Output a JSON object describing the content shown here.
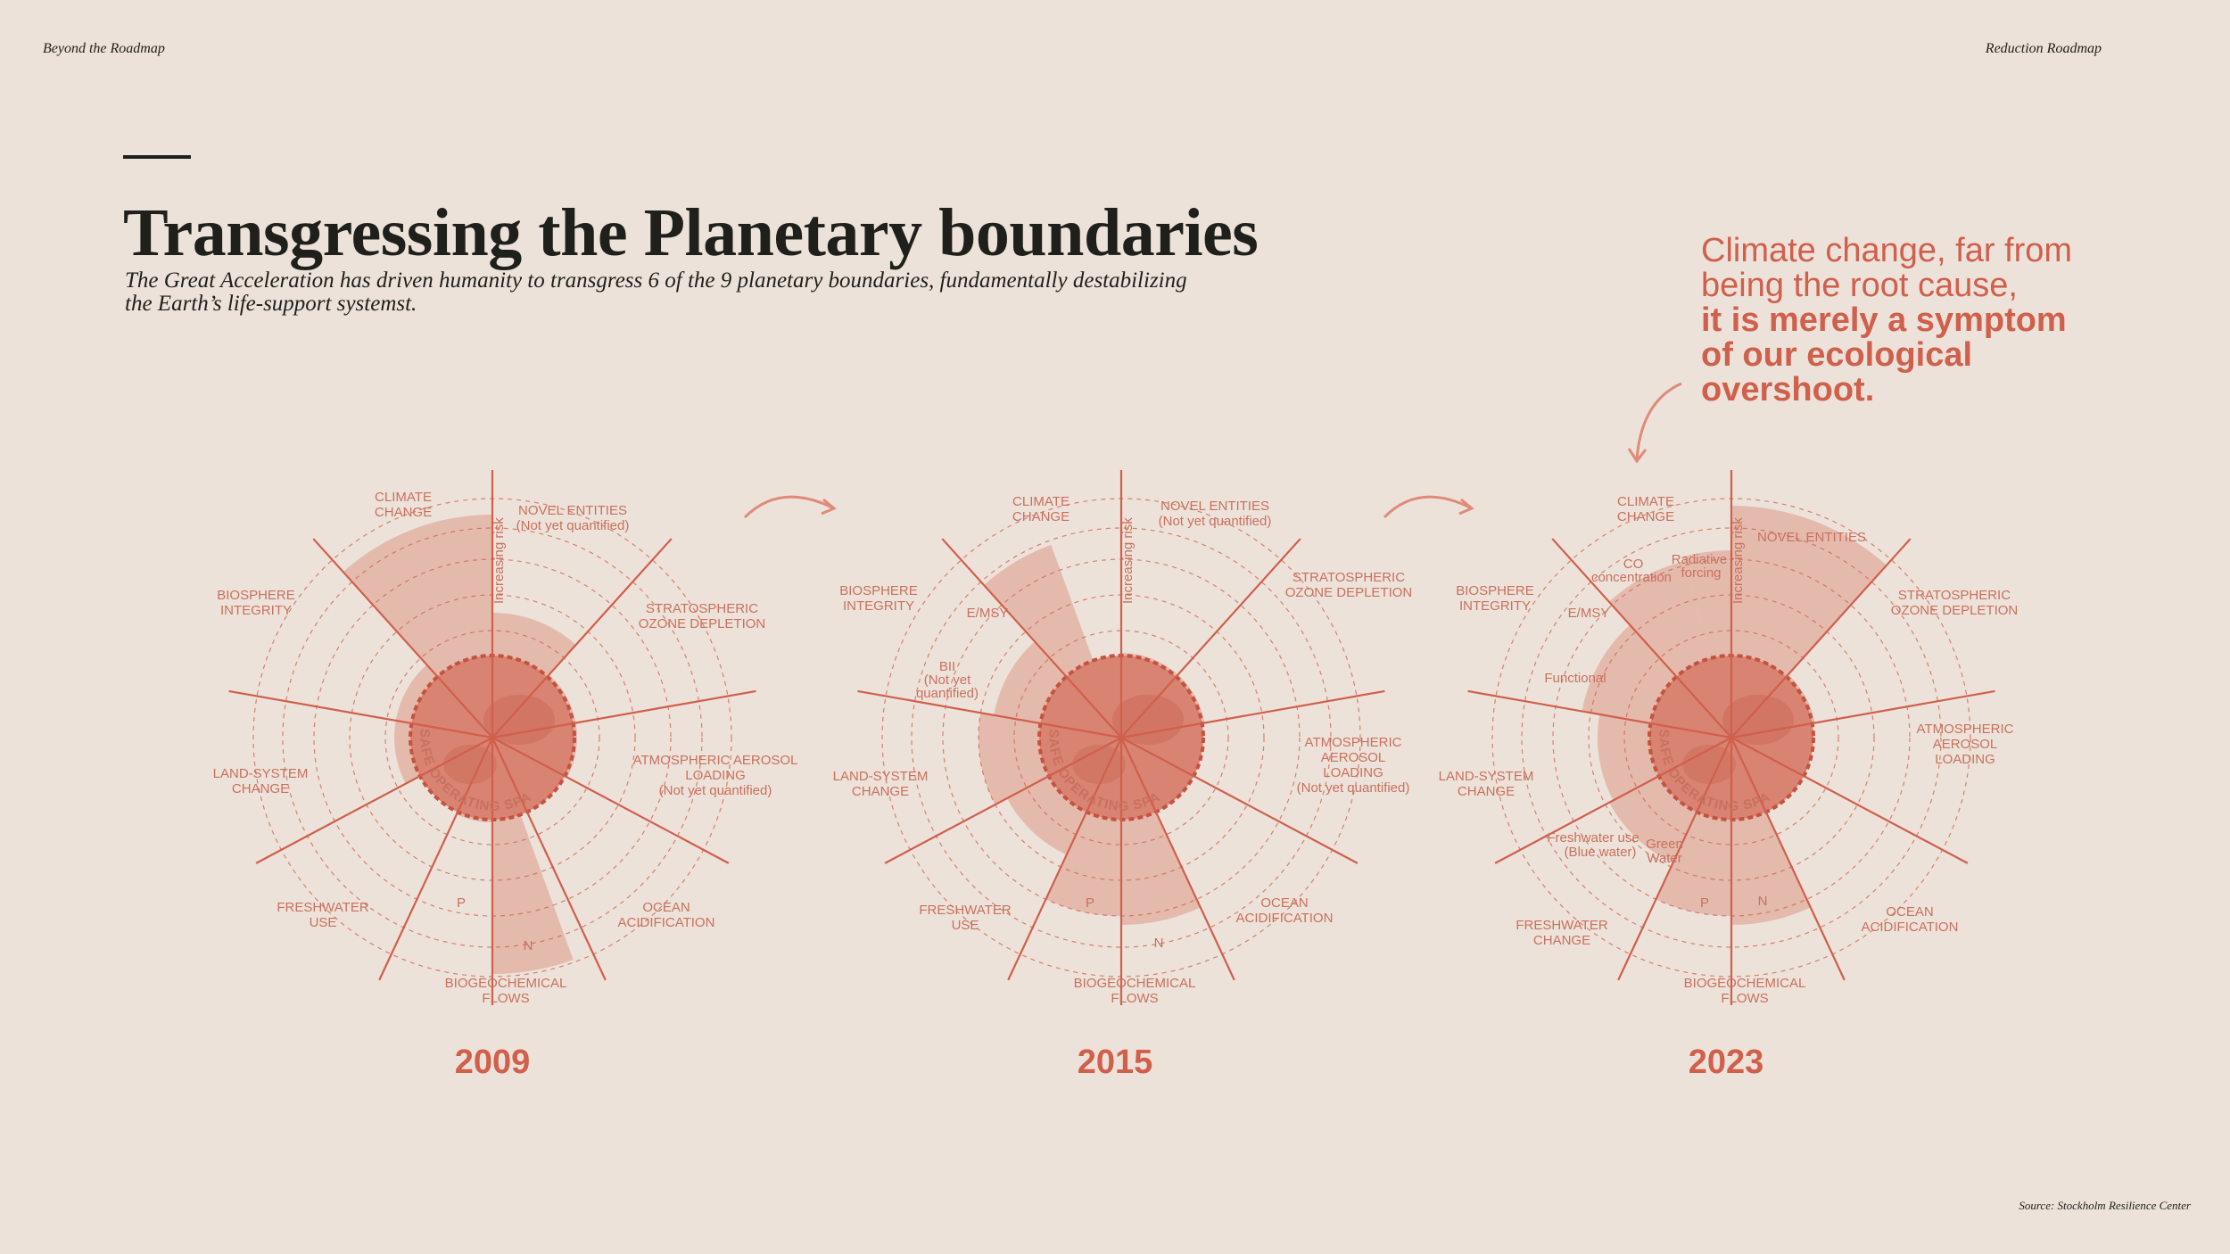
{
  "header": {
    "left": "Beyond the Roadmap",
    "right": "Reduction Roadmap"
  },
  "title": "Transgressing the Planetary boundaries",
  "subtitle": "The Great Acceleration has driven humanity to transgress 6 of the 9 planetary boundaries, fundamentally destabilizing\n the Earth’s life-support systemst.",
  "callout": {
    "line1": "Climate change, far from",
    "line2": "being the root cause,",
    "bold1": "it is merely a symptom",
    "bold2": "of our ecological",
    "bold3": "overshoot."
  },
  "source": "Source: Stockholm Resilience Center",
  "colors": {
    "accent": "#d05f4c",
    "background": "#ece2d9",
    "fill": "#e3b3a5",
    "fill_dark": "#d98372"
  },
  "axis_note": "Increasing risk",
  "safe_space": "SAFE OPERATING SPACE",
  "icons": [
    "earth-icon",
    "curved-arrow-icon"
  ],
  "diagrams": [
    {
      "year": "2009",
      "labels": [
        {
          "id": "climate",
          "text": [
            "CLIMATE",
            "CHANGE"
          ]
        },
        {
          "id": "novel",
          "text": [
            "NOVEL ENTITIES",
            "(Not yet quantified)"
          ]
        },
        {
          "id": "ozone",
          "text": [
            "STRATOSPHERIC",
            "OZONE DEPLETION"
          ]
        },
        {
          "id": "aerosol",
          "text": [
            "ATMOSPHERIC AEROSOL",
            "LOADING",
            "(Not yet quantified)"
          ]
        },
        {
          "id": "ocean",
          "text": [
            "OCEAN",
            "ACIDIFICATION"
          ]
        },
        {
          "id": "biogeo",
          "text": [
            "BIOGEOCHEMICAL",
            "FLOWS"
          ]
        },
        {
          "id": "fresh",
          "text": [
            "FRESHWATER",
            "USE"
          ]
        },
        {
          "id": "land",
          "text": [
            "LAND-SYSTEM",
            "CHANGE"
          ]
        },
        {
          "id": "bio",
          "text": [
            "BIOSPHERE",
            "INTEGRITY"
          ]
        }
      ],
      "sub": [
        "P",
        "N"
      ]
    },
    {
      "year": "2015",
      "labels": [
        {
          "id": "climate",
          "text": [
            "CLIMATE",
            "CHANGE"
          ]
        },
        {
          "id": "novel",
          "text": [
            "NOVEL ENTITIES",
            "(Not yet quantified)"
          ]
        },
        {
          "id": "ozone",
          "text": [
            "STRATOSPHERIC",
            "OZONE DEPLETION"
          ]
        },
        {
          "id": "aerosol",
          "text": [
            "ATMOSPHERIC",
            "AEROSOL",
            "LOADING",
            "(Not yet quantified)"
          ]
        },
        {
          "id": "ocean",
          "text": [
            "OCEAN",
            "ACIDIFICATION"
          ]
        },
        {
          "id": "biogeo",
          "text": [
            "BIOGEOCHEMICAL",
            "FLOWS"
          ]
        },
        {
          "id": "fresh",
          "text": [
            "FRESHWATER",
            "USE"
          ]
        },
        {
          "id": "land",
          "text": [
            "LAND-SYSTEM",
            "CHANGE"
          ]
        },
        {
          "id": "bio",
          "text": [
            "BIOSPHERE",
            "INTEGRITY"
          ]
        }
      ],
      "sub": [
        "E/MSY",
        "BII",
        "(Not yet",
        "quantified)",
        "P",
        "N"
      ]
    },
    {
      "year": "2023",
      "labels": [
        {
          "id": "climate",
          "text": [
            "CLIMATE",
            "CHANGE"
          ]
        },
        {
          "id": "novel",
          "text": [
            "NOVEL ENTITIES"
          ]
        },
        {
          "id": "ozone",
          "text": [
            "STRATOSPHERIC",
            "OZONE DEPLETION"
          ]
        },
        {
          "id": "aerosol",
          "text": [
            "ATMOSPHERIC",
            "AEROSOL",
            "LOADING"
          ]
        },
        {
          "id": "ocean",
          "text": [
            "OCEAN",
            "ACIDIFICATION"
          ]
        },
        {
          "id": "biogeo",
          "text": [
            "BIOGEOCHEMICAL",
            "FLOWS"
          ]
        },
        {
          "id": "fresh",
          "text": [
            "FRESHWATER",
            "CHANGE"
          ]
        },
        {
          "id": "land",
          "text": [
            "LAND-SYSTEM",
            "CHANGE"
          ]
        },
        {
          "id": "bio",
          "text": [
            "BIOSPHERE",
            "INTEGRITY"
          ]
        }
      ],
      "sub": [
        "E/MSY",
        "Functional",
        "CO",
        "concentration",
        "Radiative",
        "forcing",
        "Freshwater use",
        "(Blue water)",
        "Green",
        "Water",
        "P",
        "N"
      ]
    }
  ]
}
